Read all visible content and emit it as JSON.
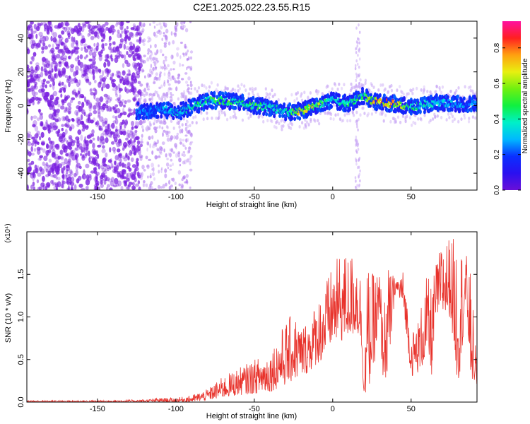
{
  "figure": {
    "title": "C2E1.2025.022.23.55.R15",
    "colors": {
      "axis": "#000000",
      "snr_line": "#e8322b",
      "dot_base": "#7a1fe0"
    }
  },
  "chart_data": [
    {
      "type": "heatmap",
      "title": "C2E1.2025.022.23.55.R15",
      "xlabel": "Height of straight line (km)",
      "ylabel": "Frequency (Hz)",
      "xlim": [
        -195,
        92
      ],
      "ylim": [
        -50,
        50
      ],
      "xticks": [
        -150,
        -100,
        -50,
        0,
        50
      ],
      "yticks": [
        -40,
        -20,
        0,
        20,
        40
      ],
      "grid": false,
      "colorbar": {
        "label": "Normalized spectral amplitude",
        "range": [
          0,
          0.95
        ],
        "ticks": [
          0.0,
          0.2,
          0.4,
          0.6,
          0.8
        ],
        "colormap": "rainbow (violet - blue - cyan - green - yellow - orange - red - magenta)"
      },
      "features": {
        "noise_region_x": [
          -195,
          -122
        ],
        "scattered_noise_x": [
          -122,
          -90
        ],
        "spectral_trace": {
          "x": [
            -125,
            -120,
            -110,
            -100,
            -90,
            -80,
            -70,
            -60,
            -50,
            -40,
            -30,
            -20,
            -10,
            0,
            10,
            20,
            25,
            30,
            40,
            50,
            60,
            70,
            80,
            90
          ],
          "freq": [
            -3,
            -4,
            -2,
            -4,
            -1,
            3,
            3,
            2,
            0,
            -1,
            -4,
            -3,
            0,
            3,
            1,
            6,
            3,
            2,
            1,
            -1,
            1,
            2,
            1,
            1
          ],
          "peak_amplitude": [
            0.3,
            0.3,
            0.35,
            0.4,
            0.5,
            0.55,
            0.6,
            0.55,
            0.6,
            0.5,
            0.45,
            0.9,
            0.7,
            0.5,
            0.5,
            0.6,
            0.8,
            0.9,
            0.95,
            0.5,
            0.45,
            0.4,
            0.35,
            0.3
          ]
        },
        "vertical_spike_x": 16
      }
    },
    {
      "type": "line",
      "xlabel": "Height of straight line (km)",
      "ylabel": "SNR (10 * v/v)",
      "yscale_label": "(x10⁴)",
      "xlim": [
        -195,
        92
      ],
      "ylim": [
        0,
        2.0
      ],
      "xticks": [
        -150,
        -100,
        -50,
        0,
        50
      ],
      "yticks": [
        0.0,
        0.5,
        1.0,
        1.5
      ],
      "ytick_labels": [
        "0.0",
        "0.5",
        "1.0",
        "1.5"
      ],
      "grid": false,
      "series": [
        {
          "color": "#e8322b",
          "x": [
            -195,
            -150,
            -120,
            -110,
            -100,
            -90,
            -80,
            -70,
            -60,
            -50,
            -40,
            -30,
            -25,
            -20,
            -15,
            -10,
            -5,
            0,
            5,
            10,
            15,
            18,
            20,
            22,
            25,
            30,
            32,
            35,
            40,
            45,
            50,
            55,
            60,
            63,
            66,
            70,
            75,
            80,
            85,
            88,
            92
          ],
          "lower": [
            0.0,
            0.0,
            0.0,
            0.0,
            0.0,
            0.0,
            0.02,
            0.05,
            0.08,
            0.1,
            0.12,
            0.2,
            0.25,
            0.3,
            0.35,
            0.45,
            0.5,
            0.7,
            0.7,
            0.75,
            0.8,
            0.7,
            0.05,
            0.1,
            0.3,
            0.8,
            0.3,
            0.25,
            1.3,
            1.1,
            0.3,
            0.35,
            0.5,
            0.3,
            1.0,
            1.0,
            1.0,
            0.15,
            1.1,
            0.25,
            0.2
          ],
          "upper": [
            0.02,
            0.02,
            0.03,
            0.05,
            0.05,
            0.08,
            0.15,
            0.3,
            0.4,
            0.5,
            0.6,
            0.95,
            1.05,
            0.9,
            1.0,
            1.2,
            1.4,
            1.6,
            1.75,
            1.75,
            1.75,
            1.5,
            0.2,
            1.6,
            1.5,
            1.6,
            1.0,
            1.6,
            1.45,
            1.55,
            0.8,
            1.0,
            1.5,
            1.35,
            1.65,
            1.9,
            1.95,
            1.9,
            1.75,
            1.5,
            0.4
          ]
        }
      ]
    }
  ]
}
